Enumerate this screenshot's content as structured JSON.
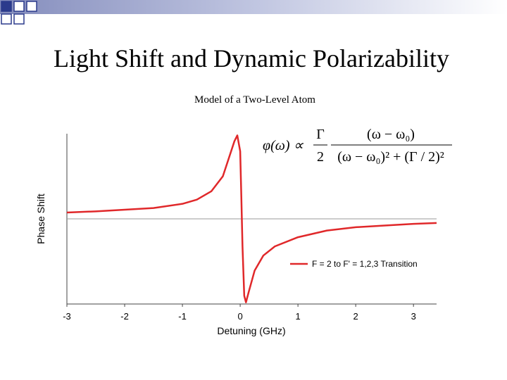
{
  "slide_title": "Light Shift and Dynamic Polarizability",
  "chart_data": {
    "type": "line",
    "title": "Model of a Two-Level Atom",
    "x_label": "Detuning (GHz)",
    "y_label": "Phase Shift",
    "formula": {
      "lhs": "φ(ω) ∝",
      "num1": "Γ",
      "den1": "2",
      "num2": "(ω − ω₀)",
      "den2": "(ω − ω₀)² + (Γ / 2)²"
    },
    "x": [
      -3,
      -2.5,
      -2,
      -1.5,
      -1,
      -0.75,
      -0.5,
      -0.3,
      -0.2,
      -0.1,
      -0.05,
      0,
      0.02,
      0.04,
      0.07,
      0.1,
      0.15,
      0.25,
      0.4,
      0.6,
      1,
      1.5,
      2,
      2.5,
      3,
      3.4
    ],
    "series": [
      {
        "name": "F = 2 to F' = 1,2,3 Transition",
        "color": "#e0282a",
        "values": [
          0.076,
          0.09,
          0.11,
          0.13,
          0.18,
          0.23,
          0.33,
          0.51,
          0.72,
          0.93,
          1.0,
          0.81,
          0.26,
          -0.33,
          -0.92,
          -1.0,
          -0.87,
          -0.62,
          -0.44,
          -0.33,
          -0.22,
          -0.14,
          -0.1,
          -0.08,
          -0.06,
          -0.05
        ]
      }
    ],
    "reference_line": 0,
    "xlim": [
      -3,
      3.4
    ],
    "ylim": [
      -1.02,
      1.02
    ],
    "xticks": [
      -3,
      -2,
      -1,
      0,
      1,
      2,
      3
    ],
    "legend": "lower right"
  }
}
